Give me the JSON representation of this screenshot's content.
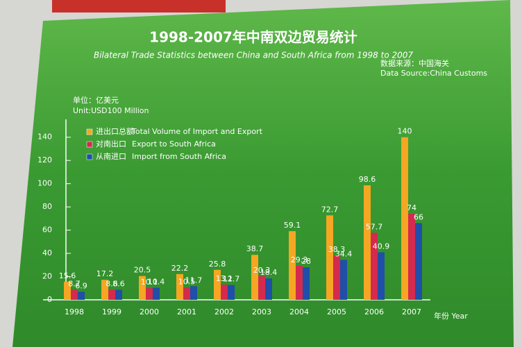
{
  "chart_data": {
    "type": "bar",
    "title": "1998-2007年中南双边贸易统计",
    "subtitle": "Bilateral Trade Statistics between China and South Africa from 1998 to 2007",
    "source_cn": "数据来源：中国海关",
    "source_en": "Data Source:China Customs",
    "unit_cn": "单位：亿美元",
    "unit_en": "Unit:USD100 Million",
    "x_label": "年份 Year",
    "categories": [
      "1998",
      "1999",
      "2000",
      "2001",
      "2002",
      "2003",
      "2004",
      "2005",
      "2006",
      "2007"
    ],
    "series": [
      {
        "name": "进出口总额",
        "name_en": "Total Volume of Import and Export",
        "color": "#f5a623",
        "values": [
          15.6,
          17.2,
          20.5,
          22.2,
          25.8,
          38.7,
          59.1,
          72.7,
          98.6,
          140
        ]
      },
      {
        "name": "对南出口",
        "name_en": "Export to South Africa",
        "color": "#d42a4e",
        "values": [
          8.7,
          8.6,
          10.1,
          10.5,
          13.1,
          20.3,
          29.3,
          38.3,
          57.7,
          74
        ]
      },
      {
        "name": "从南进口",
        "name_en": "Import from South Africa",
        "color": "#1f4fa8",
        "values": [
          6.9,
          8.6,
          10.4,
          11.7,
          12.7,
          18.4,
          28,
          34.4,
          40.9,
          66
        ]
      }
    ],
    "ylim": [
      0,
      150
    ],
    "yticks": [
      0,
      20,
      40,
      60,
      80,
      100,
      120,
      140
    ],
    "grid": false
  }
}
